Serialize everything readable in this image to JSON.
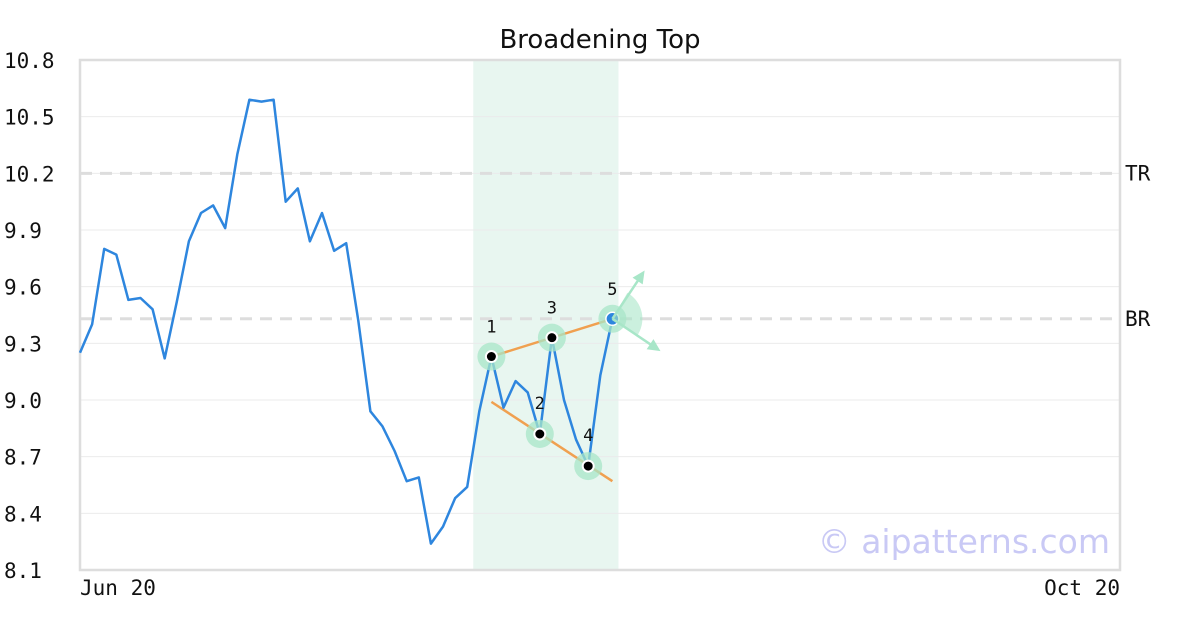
{
  "chart_data": {
    "type": "line",
    "title": "Broadening Top",
    "xlabel": "",
    "ylabel": "",
    "ylim": [
      8.1,
      10.8
    ],
    "y_ticks": [
      "10.8",
      "10.5",
      "10.2",
      "9.9",
      "9.6",
      "9.3",
      "9.0",
      "8.7",
      "8.4",
      "8.1"
    ],
    "x_ticks": [
      "Jun 20",
      "Oct 20"
    ],
    "grid": true,
    "series": [
      {
        "color": "#2e86de",
        "values": [
          9.25,
          9.4,
          9.8,
          9.77,
          9.53,
          9.54,
          9.48,
          9.22,
          9.52,
          9.84,
          9.99,
          10.03,
          9.91,
          10.3,
          10.59,
          10.58,
          10.59,
          10.05,
          10.12,
          9.84,
          9.99,
          9.79,
          9.83,
          9.42,
          8.94,
          8.86,
          8.73,
          8.57,
          8.59,
          8.24,
          8.33,
          8.48,
          8.54,
          8.94,
          9.23,
          8.96,
          9.1,
          9.04,
          8.82,
          9.33,
          9.0,
          8.79,
          8.65,
          9.13,
          9.43
        ]
      }
    ],
    "reference_lines": [
      {
        "label": "TR",
        "value": 10.2
      },
      {
        "label": "BR",
        "value": 9.43
      }
    ],
    "pattern_points": [
      {
        "label": "1",
        "index": 34,
        "value": 9.23
      },
      {
        "label": "2",
        "index": 38,
        "value": 8.82
      },
      {
        "label": "3",
        "index": 39,
        "value": 9.33
      },
      {
        "label": "4",
        "index": 42,
        "value": 8.65
      },
      {
        "label": "5",
        "index": 44,
        "value": 9.43
      }
    ],
    "pattern_region": {
      "start_index": 32.5,
      "end_index": 44.5
    },
    "trendlines": [
      {
        "from": [
          34,
          9.23
        ],
        "to": [
          44,
          9.43
        ]
      },
      {
        "from": [
          34,
          8.99
        ],
        "to": [
          44,
          8.57
        ]
      }
    ],
    "colors": {
      "price_line": "#2e86de",
      "trendline": "#f0a050",
      "highlight": "#a8e6c8",
      "region": "#e8f6f0",
      "last_point": "#2e86de",
      "reference": "#dddddd",
      "watermark": "#c9c9f5"
    }
  },
  "watermark": "© aipatterns.com"
}
